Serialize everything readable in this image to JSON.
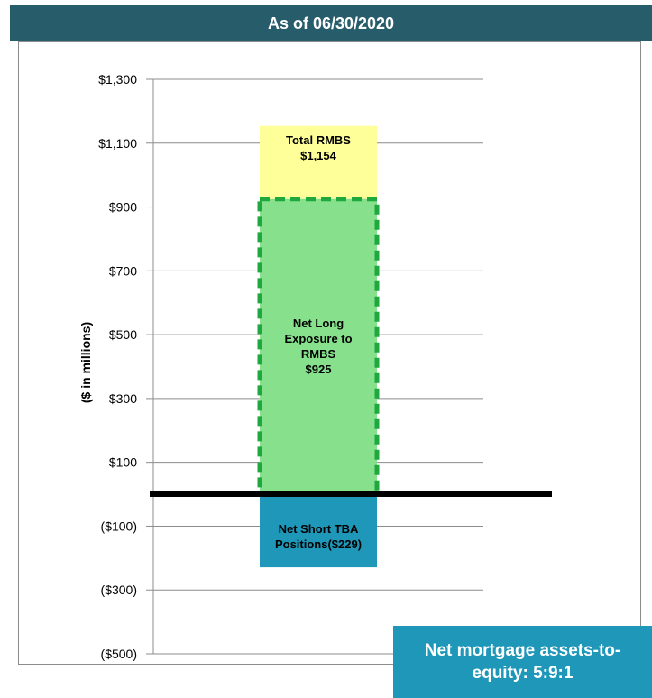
{
  "header": {
    "title": "As of 06/30/2020"
  },
  "chart_data": {
    "type": "bar",
    "ylabel": "($ in millions)",
    "ylim": [
      -500,
      1300
    ],
    "yticks": [
      1300,
      1100,
      900,
      700,
      500,
      300,
      100,
      -100,
      -300,
      -500
    ],
    "ytick_labels": [
      "$1,300",
      "$1,100",
      "$900",
      "$700",
      "$500",
      "$300",
      "$100",
      "($100)",
      "($300)",
      "($500)"
    ],
    "segments": [
      {
        "name": "Total RMBS",
        "label_lines": [
          "Total RMBS",
          "$1,154"
        ],
        "from": 925,
        "to": 1154,
        "color": "#ffff99"
      },
      {
        "name": "Net Long Exposure to RMBS",
        "label_lines": [
          "Net Long",
          "Exposure to",
          "RMBS",
          "$925"
        ],
        "from": 0,
        "to": 925,
        "color": "#86e08c",
        "border": "#1fa83e"
      },
      {
        "name": "Net Short TBA Positions",
        "label_lines": [
          "Net Short TBA",
          "Positions($229)"
        ],
        "from": -229,
        "to": 0,
        "color": "#1f97b8"
      }
    ]
  },
  "callout": {
    "text": "Net mortgage assets-to-equity: 5:9:1"
  }
}
